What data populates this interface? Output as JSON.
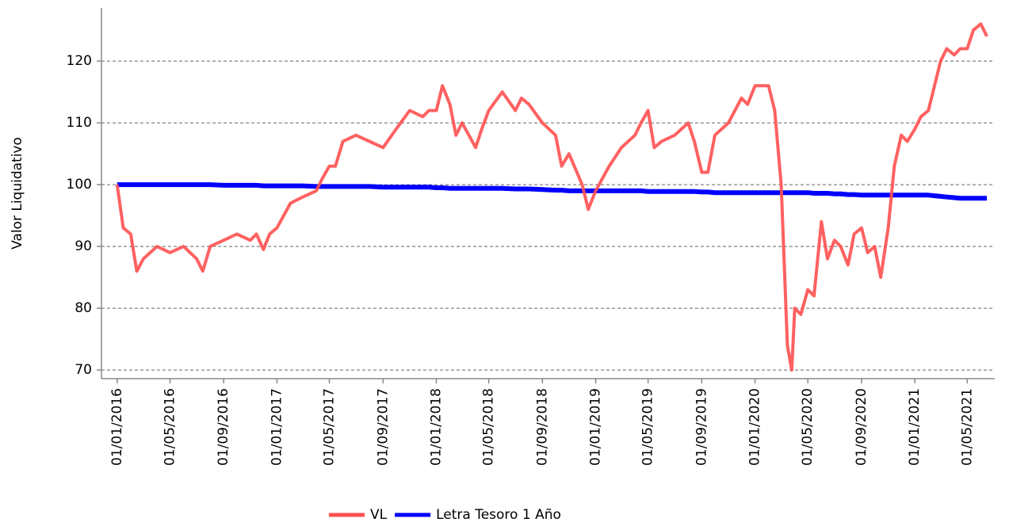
{
  "chart_data": {
    "type": "line",
    "y_label": "Valor Liquidativo",
    "x": [
      "01/01/2016",
      "15/01/2016",
      "01/02/2016",
      "15/02/2016",
      "01/03/2016",
      "01/04/2016",
      "01/05/2016",
      "01/06/2016",
      "01/07/2016",
      "15/07/2016",
      "01/08/2016",
      "01/09/2016",
      "01/10/2016",
      "01/11/2016",
      "15/11/2016",
      "01/12/2016",
      "15/12/2016",
      "01/01/2017",
      "01/02/2017",
      "01/03/2017",
      "01/04/2017",
      "15/04/2017",
      "01/05/2017",
      "15/05/2017",
      "01/06/2017",
      "01/07/2017",
      "01/08/2017",
      "01/09/2017",
      "01/10/2017",
      "01/11/2017",
      "01/12/2017",
      "15/12/2017",
      "01/01/2018",
      "15/01/2018",
      "01/02/2018",
      "15/02/2018",
      "01/03/2018",
      "01/04/2018",
      "15/04/2018",
      "01/05/2018",
      "01/06/2018",
      "01/07/2018",
      "15/07/2018",
      "01/08/2018",
      "01/09/2018",
      "01/10/2018",
      "15/10/2018",
      "01/11/2018",
      "01/12/2018",
      "15/12/2018",
      "01/01/2019",
      "01/02/2019",
      "01/03/2019",
      "01/04/2019",
      "15/04/2019",
      "01/05/2019",
      "15/05/2019",
      "01/06/2019",
      "01/07/2019",
      "01/08/2019",
      "15/08/2019",
      "01/09/2019",
      "15/09/2019",
      "01/10/2019",
      "01/11/2019",
      "01/12/2019",
      "15/12/2019",
      "01/01/2020",
      "01/02/2020",
      "15/02/2020",
      "01/03/2020",
      "15/03/2020",
      "25/03/2020",
      "01/04/2020",
      "15/04/2020",
      "01/05/2020",
      "15/05/2020",
      "01/06/2020",
      "15/06/2020",
      "01/07/2020",
      "15/07/2020",
      "01/08/2020",
      "15/08/2020",
      "01/09/2020",
      "15/09/2020",
      "01/10/2020",
      "15/10/2020",
      "01/11/2020",
      "15/11/2020",
      "01/12/2020",
      "15/12/2020",
      "01/01/2021",
      "15/01/2021",
      "01/02/2021",
      "15/02/2021",
      "01/03/2021",
      "15/03/2021",
      "01/04/2021",
      "15/04/2021",
      "01/05/2021",
      "15/05/2021",
      "01/06/2021",
      "15/06/2021"
    ],
    "series": [
      {
        "name": "VL",
        "color": "#ff5050",
        "values": [
          100,
          93,
          92,
          86,
          88,
          90,
          89,
          90,
          88,
          86,
          90,
          91,
          92,
          91,
          92,
          89.5,
          92,
          93,
          97,
          98,
          99,
          101,
          103,
          103,
          107,
          108,
          107,
          106,
          109,
          112,
          111,
          112,
          112,
          116,
          113,
          108,
          110,
          106,
          109,
          112,
          115,
          112,
          114,
          113,
          110,
          108,
          103,
          105,
          100,
          96,
          99,
          103,
          106,
          108,
          110,
          112,
          106,
          107,
          108,
          110,
          107,
          102,
          102,
          108,
          110,
          114,
          113,
          116,
          116,
          112,
          100,
          74,
          70,
          80,
          79,
          83,
          82,
          94,
          88,
          91,
          90,
          87,
          92,
          93,
          89,
          90,
          85,
          93,
          103,
          108,
          107,
          109,
          111,
          112,
          116,
          120,
          122,
          121,
          122,
          122,
          125,
          126,
          124
        ]
      },
      {
        "name": "Letra Tesoro 1 Año",
        "color": "#0000ff",
        "values": [
          100,
          100,
          100,
          100,
          100,
          100,
          100,
          100,
          100,
          100,
          100,
          99.9,
          99.9,
          99.9,
          99.9,
          99.8,
          99.8,
          99.8,
          99.8,
          99.8,
          99.7,
          99.7,
          99.7,
          99.7,
          99.7,
          99.7,
          99.7,
          99.6,
          99.6,
          99.6,
          99.6,
          99.6,
          99.5,
          99.5,
          99.4,
          99.4,
          99.4,
          99.4,
          99.4,
          99.4,
          99.4,
          99.3,
          99.3,
          99.3,
          99.2,
          99.1,
          99.1,
          99,
          99,
          99,
          99,
          99,
          99,
          99,
          99,
          98.9,
          98.9,
          98.9,
          98.9,
          98.9,
          98.9,
          98.8,
          98.8,
          98.7,
          98.7,
          98.7,
          98.7,
          98.7,
          98.7,
          98.7,
          98.7,
          98.7,
          98.7,
          98.7,
          98.7,
          98.7,
          98.6,
          98.6,
          98.6,
          98.5,
          98.5,
          98.4,
          98.4,
          98.3,
          98.3,
          98.3,
          98.3,
          98.3,
          98.3,
          98.3,
          98.3,
          98.3,
          98.3,
          98.3,
          98.2,
          98.1,
          98,
          97.9,
          97.8,
          97.8,
          97.8,
          97.8,
          97.8
        ]
      }
    ],
    "xlim": [
      "26/11/2015",
      "03/07/2021"
    ],
    "xticks": [
      "01/01/2016",
      "01/05/2016",
      "01/09/2016",
      "01/01/2017",
      "01/05/2017",
      "01/09/2017",
      "01/01/2018",
      "01/05/2018",
      "01/09/2018",
      "01/01/2019",
      "01/05/2019",
      "01/09/2019",
      "01/01/2020",
      "01/05/2020",
      "01/09/2020",
      "01/01/2021",
      "01/05/2021"
    ],
    "ylim": [
      68.6,
      128.6
    ],
    "yticks": [
      70,
      80,
      90,
      100,
      110,
      120
    ],
    "grid": true,
    "legend": "bottom"
  }
}
